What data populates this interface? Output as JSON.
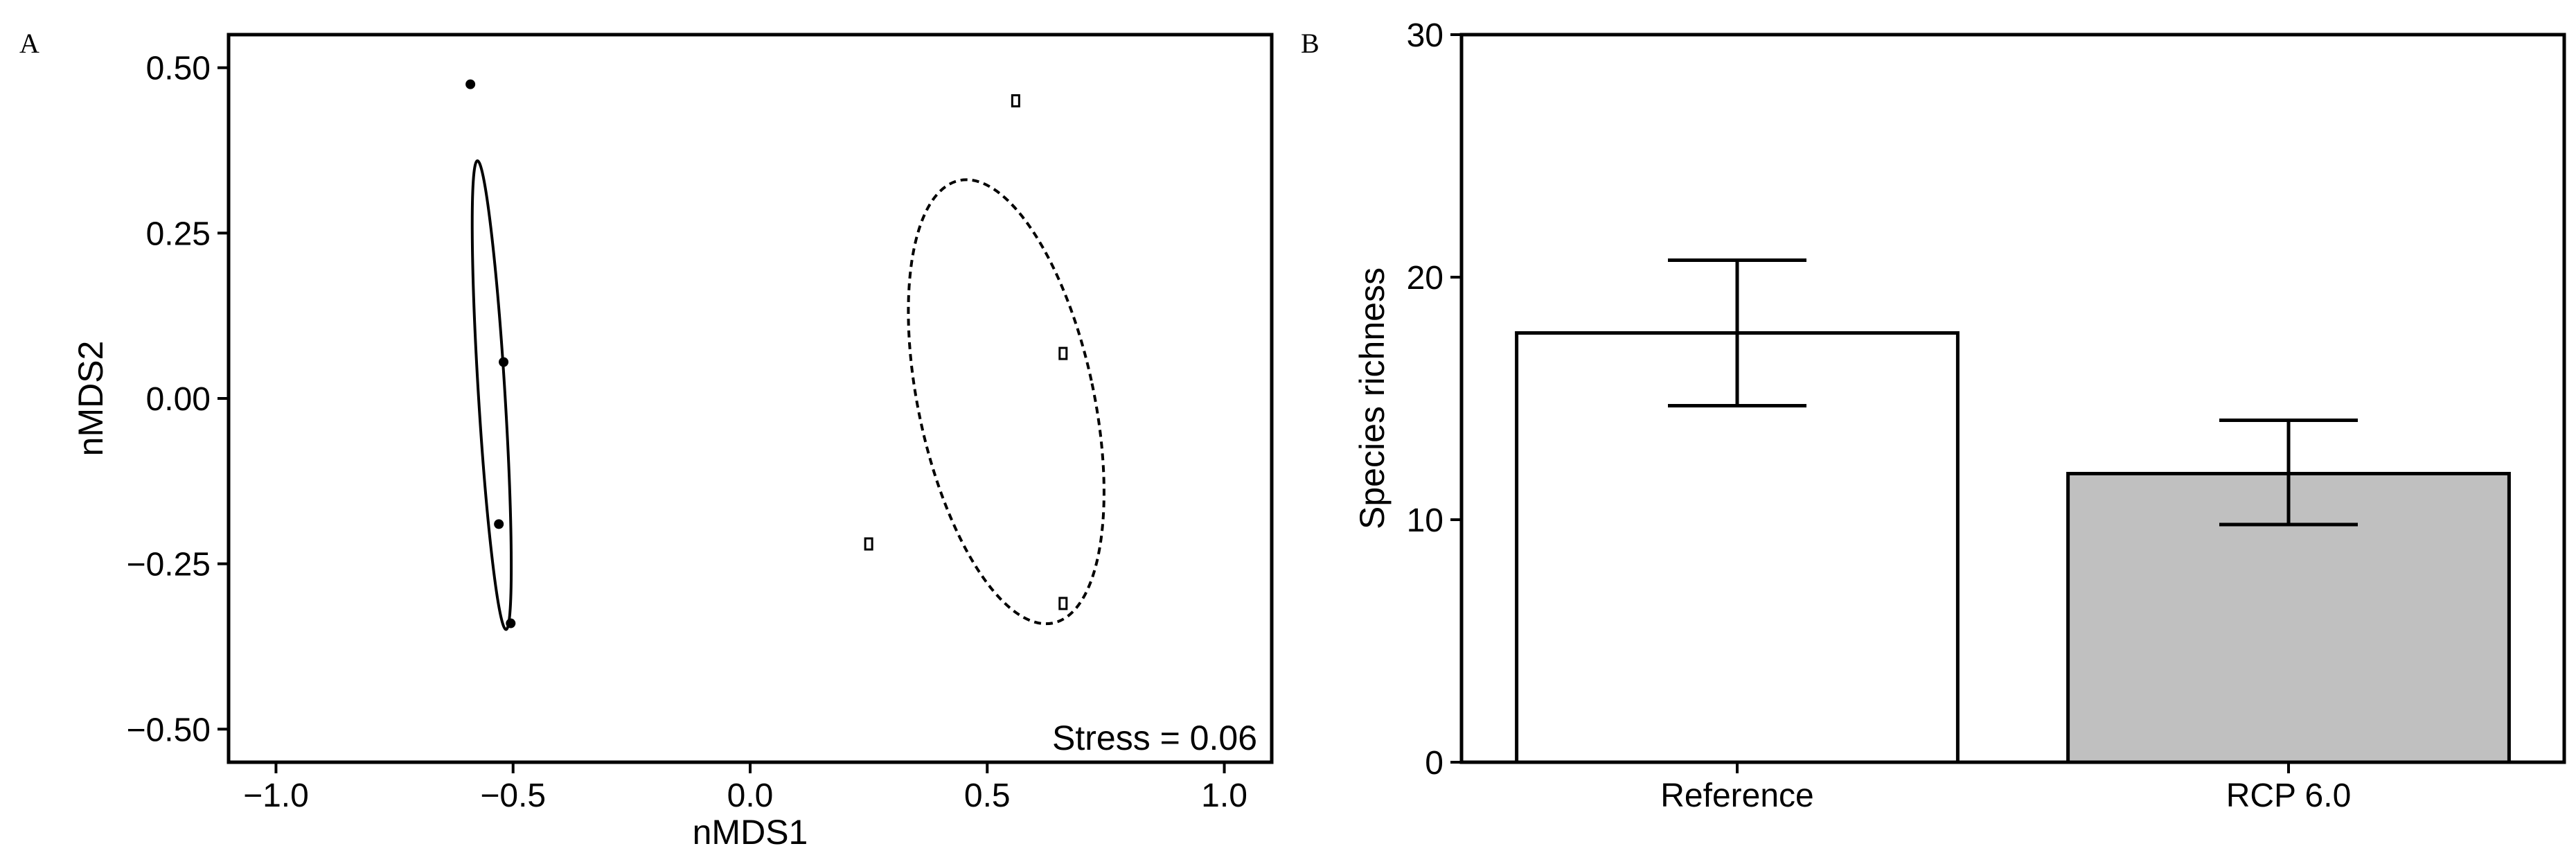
{
  "chart_data": [
    {
      "panel": "A",
      "type": "scatter",
      "xlabel": "nMDS1",
      "ylabel": "nMDS2",
      "xlim": [
        -1.1,
        1.1
      ],
      "ylim": [
        -0.55,
        0.55
      ],
      "xticks": [
        -1.0,
        -0.5,
        0.0,
        0.5,
        1.0
      ],
      "xtick_labels": [
        "−1.0",
        "−0.5",
        "0.0",
        "0.5",
        "1.0"
      ],
      "yticks": [
        0.5,
        0.25,
        0.0,
        -0.25,
        -0.5
      ],
      "ytick_labels": [
        "0.50",
        "0.25",
        "0.00",
        "−0.25",
        "−0.50"
      ],
      "annotation": "Stress =  0.06",
      "series": [
        {
          "marker": "circle",
          "points": [
            {
              "x": -0.59,
              "y": 0.475
            },
            {
              "x": -0.52,
              "y": 0.055
            },
            {
              "x": -0.53,
              "y": -0.19
            },
            {
              "x": -0.505,
              "y": -0.34
            }
          ],
          "ellipse": {
            "cx": -0.545,
            "cy": 0.005,
            "rx": 0.028,
            "ry": 0.355,
            "rotate_deg": -3.5,
            "dash": "solid"
          }
        },
        {
          "marker": "square",
          "points": [
            {
              "x": 0.56,
              "y": 0.45
            },
            {
              "x": 0.66,
              "y": 0.068
            },
            {
              "x": 0.25,
              "y": -0.22
            },
            {
              "x": 0.66,
              "y": -0.31
            }
          ],
          "ellipse": {
            "cx": 0.54,
            "cy": -0.005,
            "rx": 0.185,
            "ry": 0.342,
            "rotate_deg": -12,
            "dash": "dashed"
          }
        }
      ]
    },
    {
      "panel": "B",
      "type": "bar",
      "categories": [
        "Reference",
        "RCP 6.0"
      ],
      "values": [
        17.7,
        11.9
      ],
      "errors_lower": [
        14.7,
        9.8
      ],
      "errors_upper": [
        20.7,
        14.1
      ],
      "bar_colors": [
        "#ffffff",
        "#c0c0c0"
      ],
      "xlabel": "",
      "ylabel": "Species richness",
      "ylim": [
        0,
        30
      ],
      "yticks": [
        0,
        10,
        20,
        30
      ],
      "ytick_labels": [
        "0",
        "10",
        "20",
        "30"
      ]
    }
  ]
}
